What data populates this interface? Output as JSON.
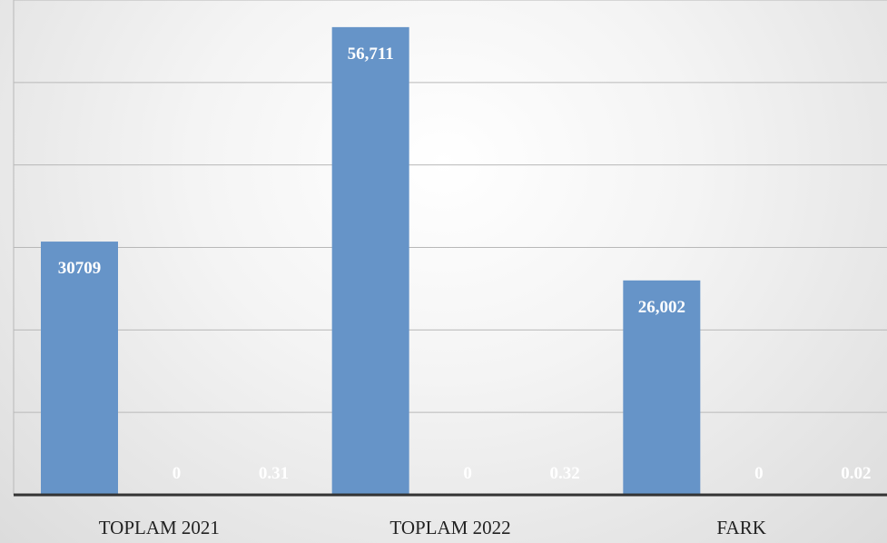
{
  "chart_data": {
    "type": "bar",
    "categories": [
      "TOPLAM 2021",
      "TOPLAM 2022",
      "FARK"
    ],
    "series": [
      {
        "values": [
          30709,
          56711,
          26002
        ],
        "labels": [
          "30709",
          "56,711",
          "26,002"
        ]
      },
      {
        "values": [
          0,
          0,
          0
        ],
        "labels": [
          "0",
          "0",
          "0"
        ]
      },
      {
        "values": [
          0.31,
          0.32,
          0.02
        ],
        "labels": [
          "0.31",
          "0.32",
          "0.02"
        ]
      }
    ],
    "ylim": [
      0,
      60000
    ],
    "grid": true,
    "legend": "none"
  },
  "colors": {
    "bar": "#6694c8",
    "gridline": "#b8b8b8",
    "axis": "#333333",
    "label_text": "#ffffff",
    "tick_text": "#222222"
  }
}
